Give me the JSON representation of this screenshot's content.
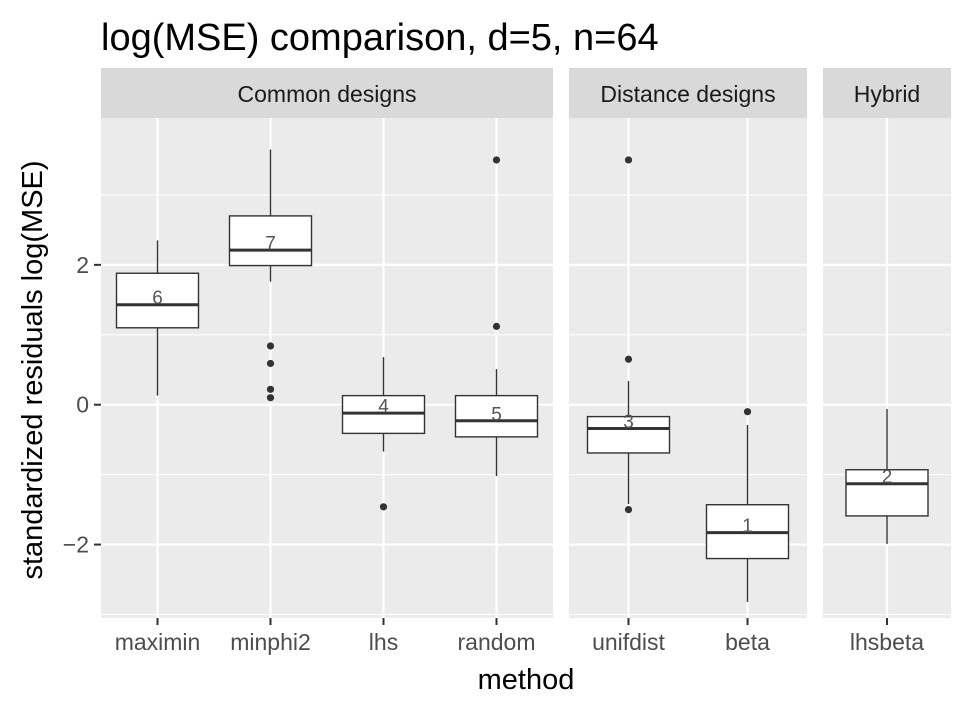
{
  "chart_data": {
    "type": "boxplot",
    "title": "log(MSE) comparison, d=5, n=64",
    "xlabel": "method",
    "ylabel": "standardized residuals log(MSE)",
    "ylim": [
      -3.05,
      4.1
    ],
    "yticks": [
      -2,
      0,
      2
    ],
    "ytick_labels": [
      "−2",
      "0",
      "2"
    ],
    "grid": true,
    "facets": [
      {
        "label": "Common designs",
        "categories": [
          {
            "name": "maximin",
            "rank": "6",
            "q1": 1.1,
            "median": 1.43,
            "q3": 1.88,
            "whisker_low": 0.13,
            "whisker_high": 2.35,
            "outliers": []
          },
          {
            "name": "minphi2",
            "rank": "7",
            "q1": 1.99,
            "median": 2.21,
            "q3": 2.7,
            "whisker_low": 1.76,
            "whisker_high": 3.65,
            "outliers": [
              0.84,
              0.59,
              0.22,
              0.1
            ]
          },
          {
            "name": "lhs",
            "rank": "4",
            "q1": -0.41,
            "median": -0.12,
            "q3": 0.13,
            "whisker_low": -0.67,
            "whisker_high": 0.68,
            "outliers": [
              -1.46
            ]
          },
          {
            "name": "random",
            "rank": "5",
            "q1": -0.46,
            "median": -0.23,
            "q3": 0.13,
            "whisker_low": -1.02,
            "whisker_high": 0.51,
            "outliers": [
              3.5,
              1.12
            ]
          }
        ]
      },
      {
        "label": "Distance designs",
        "categories": [
          {
            "name": "unifdist",
            "rank": "3",
            "q1": -0.69,
            "median": -0.34,
            "q3": -0.17,
            "whisker_low": -1.42,
            "whisker_high": 0.34,
            "outliers": [
              3.5,
              0.65,
              -1.5
            ]
          },
          {
            "name": "beta",
            "rank": "1",
            "q1": -2.2,
            "median": -1.83,
            "q3": -1.43,
            "whisker_low": -2.82,
            "whisker_high": -0.29,
            "outliers": [
              -0.1
            ]
          }
        ]
      },
      {
        "label": "Hybrid",
        "categories": [
          {
            "name": "lhsbeta",
            "rank": "2",
            "q1": -1.59,
            "median": -1.13,
            "q3": -0.93,
            "whisker_low": -1.99,
            "whisker_high": -0.06,
            "outliers": []
          }
        ]
      }
    ]
  }
}
